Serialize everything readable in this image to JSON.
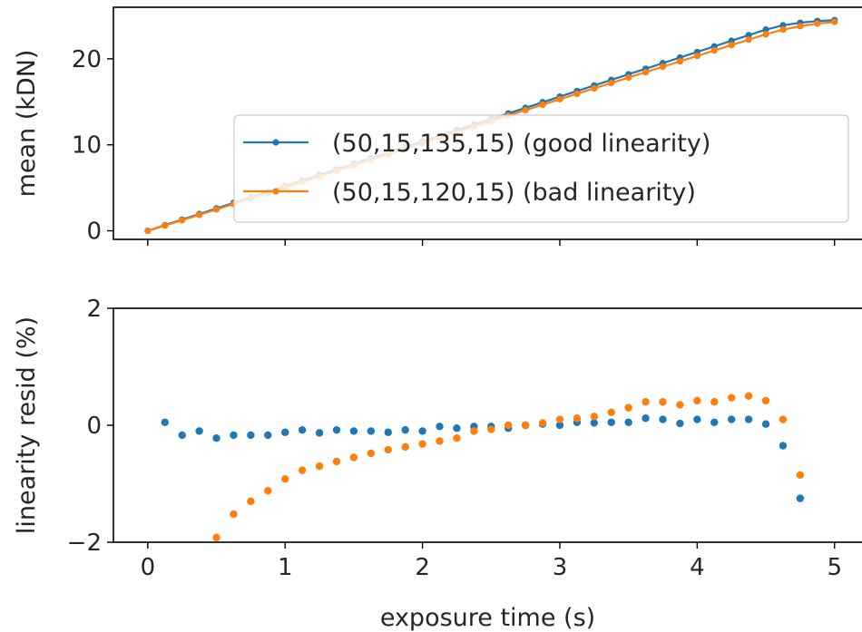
{
  "chart_data": [
    {
      "type": "line",
      "ylabel": "mean (kDN)",
      "xlim": [
        -0.25,
        5.2
      ],
      "ylim": [
        -1,
        26
      ],
      "xticks": [
        0,
        1,
        2,
        3,
        4,
        5
      ],
      "yticks": [
        0,
        10,
        20
      ],
      "ytick_labels": [
        "0",
        "10",
        "20"
      ],
      "grid": false,
      "legend_position": "center-right",
      "series": [
        {
          "name": "(50,15,135,15) (good linearity)",
          "color": "#1f77b4",
          "marker": "dot-line",
          "x": [
            0.0,
            0.125,
            0.25,
            0.375,
            0.5,
            0.625,
            0.75,
            0.875,
            1.0,
            1.125,
            1.25,
            1.375,
            1.5,
            1.625,
            1.75,
            1.875,
            2.0,
            2.125,
            2.25,
            2.375,
            2.5,
            2.625,
            2.75,
            2.875,
            3.0,
            3.125,
            3.25,
            3.375,
            3.5,
            3.625,
            3.75,
            3.875,
            4.0,
            4.125,
            4.25,
            4.375,
            4.5,
            4.625,
            4.75,
            4.875,
            5.0
          ],
          "y": [
            0.0,
            0.65,
            1.3,
            1.95,
            2.6,
            3.25,
            3.9,
            4.55,
            5.2,
            5.85,
            6.5,
            7.15,
            7.8,
            8.45,
            9.1,
            9.75,
            10.4,
            11.05,
            11.7,
            12.35,
            13.0,
            13.65,
            14.3,
            14.95,
            15.6,
            16.25,
            16.9,
            17.55,
            18.2,
            18.85,
            19.5,
            20.15,
            20.8,
            21.45,
            22.1,
            22.75,
            23.4,
            23.9,
            24.2,
            24.4,
            24.5
          ]
        },
        {
          "name": "(50,15,120,15) (bad linearity)",
          "color": "#ff7f0e",
          "marker": "dot-line",
          "x": [
            0.0,
            0.125,
            0.25,
            0.375,
            0.5,
            0.625,
            0.75,
            0.875,
            1.0,
            1.125,
            1.25,
            1.375,
            1.5,
            1.625,
            1.75,
            1.875,
            2.0,
            2.125,
            2.25,
            2.375,
            2.5,
            2.625,
            2.75,
            2.875,
            3.0,
            3.125,
            3.25,
            3.375,
            3.5,
            3.625,
            3.75,
            3.875,
            4.0,
            4.125,
            4.25,
            4.375,
            4.5,
            4.625,
            4.75,
            4.875,
            5.0
          ],
          "y": [
            0.0,
            0.6,
            1.22,
            1.85,
            2.48,
            3.12,
            3.76,
            4.4,
            5.04,
            5.68,
            6.33,
            6.97,
            7.62,
            8.26,
            8.9,
            9.55,
            10.19,
            10.84,
            11.48,
            12.12,
            12.76,
            13.4,
            14.03,
            14.67,
            15.3,
            15.93,
            16.56,
            17.19,
            17.82,
            18.45,
            19.08,
            19.71,
            20.34,
            20.97,
            21.6,
            22.23,
            22.86,
            23.4,
            23.8,
            24.1,
            24.3
          ]
        }
      ]
    },
    {
      "type": "scatter",
      "xlabel": "exposure time (s)",
      "ylabel": "linearity resid (%)",
      "xlim": [
        -0.25,
        5.2
      ],
      "ylim": [
        -2,
        2
      ],
      "xticks": [
        0,
        1,
        2,
        3,
        4,
        5
      ],
      "xtick_labels": [
        "0",
        "1",
        "2",
        "3",
        "4",
        "5"
      ],
      "yticks": [
        -2,
        0,
        2
      ],
      "ytick_labels": [
        "−2",
        "0",
        "2"
      ],
      "grid": false,
      "series": [
        {
          "name": "(50,15,135,15) (good linearity)",
          "color": "#1f77b4",
          "x": [
            0.125,
            0.25,
            0.375,
            0.5,
            0.625,
            0.75,
            0.875,
            1.0,
            1.125,
            1.25,
            1.375,
            1.5,
            1.625,
            1.75,
            1.875,
            2.0,
            2.125,
            2.25,
            2.375,
            2.5,
            2.625,
            2.75,
            2.875,
            3.0,
            3.125,
            3.25,
            3.375,
            3.5,
            3.625,
            3.75,
            3.875,
            4.0,
            4.125,
            4.25,
            4.375,
            4.5,
            4.625,
            4.75
          ],
          "y": [
            0.05,
            -0.17,
            -0.1,
            -0.22,
            -0.17,
            -0.17,
            -0.17,
            -0.12,
            -0.08,
            -0.13,
            -0.08,
            -0.1,
            -0.1,
            -0.12,
            -0.08,
            -0.1,
            -0.02,
            -0.05,
            -0.02,
            -0.02,
            -0.05,
            0.0,
            0.02,
            0.0,
            0.05,
            0.04,
            0.05,
            0.05,
            0.12,
            0.1,
            0.03,
            0.1,
            0.05,
            0.1,
            0.1,
            0.02,
            -0.35,
            -1.25
          ]
        },
        {
          "name": "(50,15,120,15) (bad linearity)",
          "color": "#ff7f0e",
          "x": [
            0.5,
            0.625,
            0.75,
            0.875,
            1.0,
            1.125,
            1.25,
            1.375,
            1.5,
            1.625,
            1.75,
            1.875,
            2.0,
            2.125,
            2.25,
            2.375,
            2.5,
            2.625,
            2.75,
            2.875,
            3.0,
            3.125,
            3.25,
            3.375,
            3.5,
            3.625,
            3.75,
            3.875,
            4.0,
            4.125,
            4.25,
            4.375,
            4.5,
            4.625,
            4.75
          ],
          "y": [
            -1.92,
            -1.52,
            -1.3,
            -1.12,
            -0.92,
            -0.77,
            -0.7,
            -0.62,
            -0.55,
            -0.48,
            -0.42,
            -0.37,
            -0.32,
            -0.27,
            -0.22,
            -0.1,
            -0.07,
            0.0,
            0.0,
            0.04,
            0.1,
            0.12,
            0.15,
            0.22,
            0.3,
            0.4,
            0.4,
            0.35,
            0.42,
            0.4,
            0.47,
            0.5,
            0.42,
            0.1,
            -0.85
          ]
        }
      ]
    }
  ]
}
